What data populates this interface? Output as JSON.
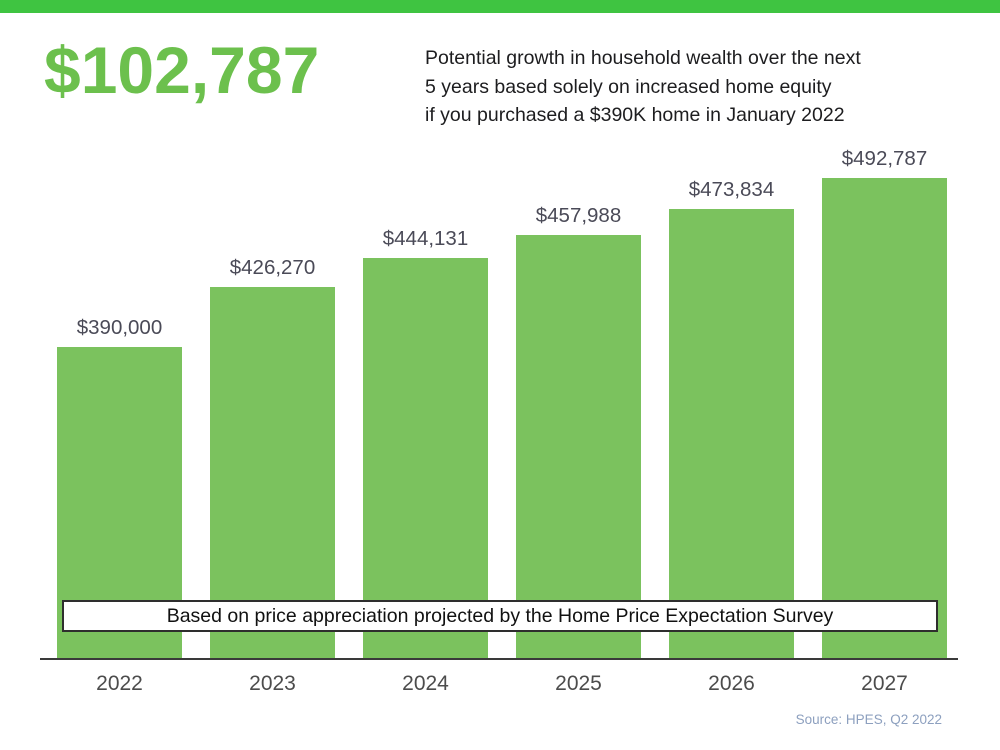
{
  "header": {
    "headline": "$102,787",
    "description_lines": [
      "Potential growth in household wealth over the next",
      "5 years based solely on increased home equity",
      "if you purchased a $390K home in January 2022"
    ]
  },
  "chart_data": {
    "type": "bar",
    "categories": [
      "2022",
      "2023",
      "2024",
      "2025",
      "2026",
      "2027"
    ],
    "values": [
      390000,
      426270,
      444131,
      457988,
      473834,
      492787
    ],
    "value_labels": [
      "$390,000",
      "$426,270",
      "$444,131",
      "$457,988",
      "$473,834",
      "$492,787"
    ],
    "title": "Potential growth in household wealth over the next 5 years based solely on increased home equity if you purchased a $390K home in January 2022",
    "xlabel": "",
    "ylabel": "",
    "ylim": [
      196000,
      500000
    ],
    "grid": false,
    "legend": false,
    "bar_color": "#7bc25e",
    "annotation": "Based on price appreciation projected by the Home Price Expectation Survey"
  },
  "caption": "Based on price appreciation projected by the Home Price Expectation Survey",
  "source": "Source: HPES, Q2 2022",
  "colors": {
    "stripe_green": "#3fc441",
    "bar_green": "#7bc25e",
    "headline_green": "#6cc04d",
    "value_label_gray": "#4a4a57",
    "axis_dark": "#3a3a3a",
    "source_blue": "#8da0bf"
  }
}
